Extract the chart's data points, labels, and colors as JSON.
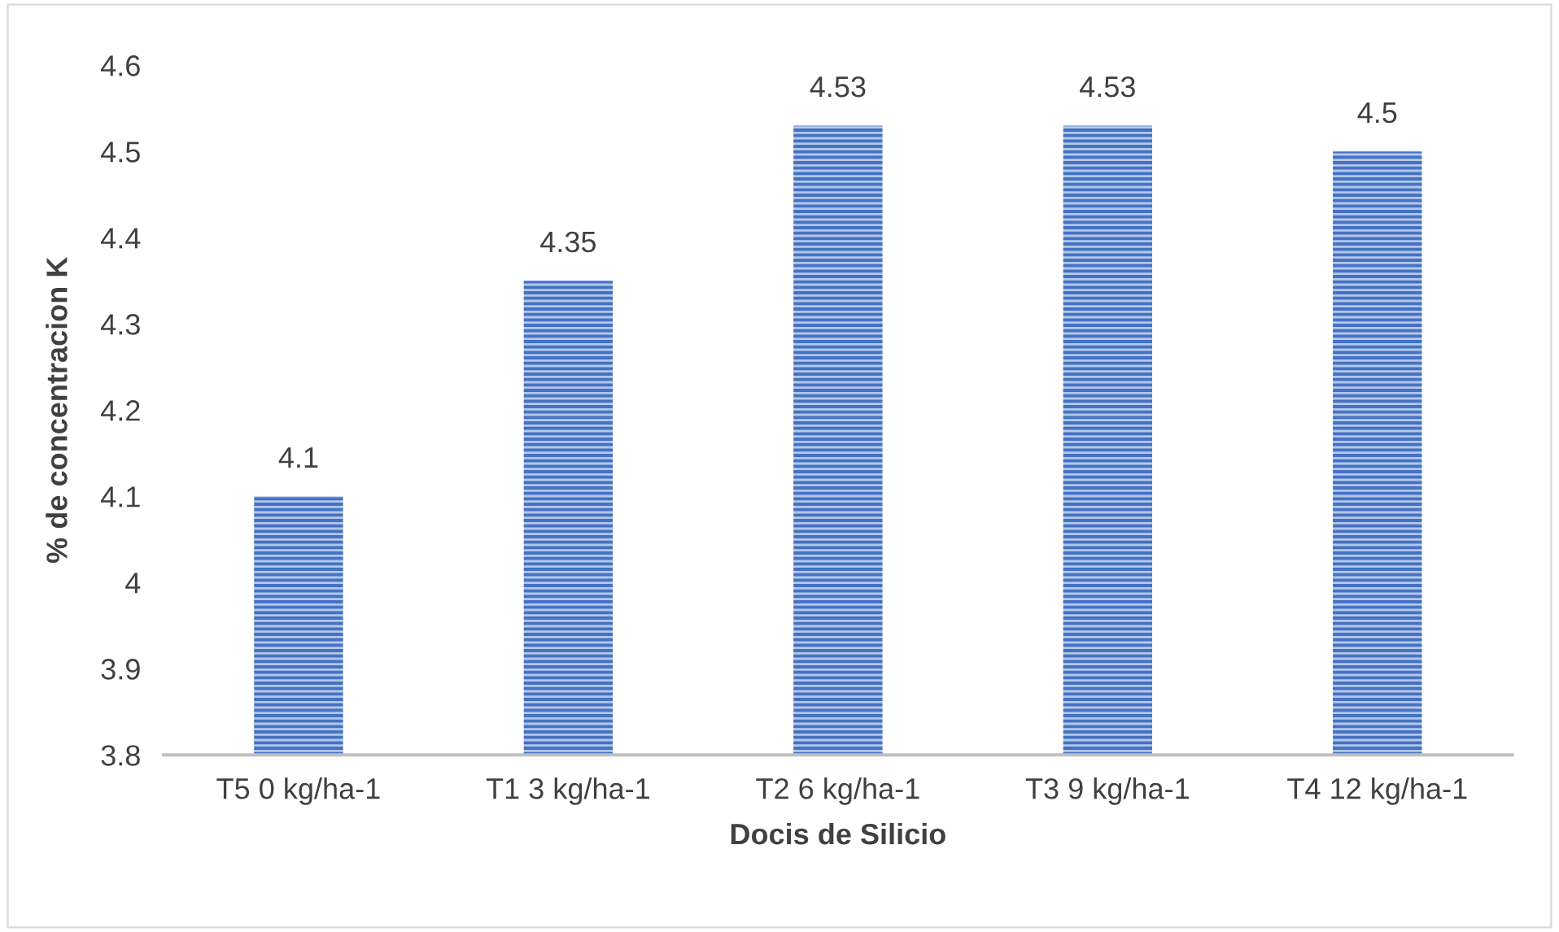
{
  "chart_data": {
    "type": "bar",
    "xlabel": "Docis de Silicio",
    "ylabel": "% de concentracion K",
    "categories": [
      "T5 0 kg/ha-1",
      "T1 3 kg/ha-1",
      "T2 6 kg/ha-1",
      "T3 9 kg/ha-1",
      "T4 12 kg/ha-1"
    ],
    "values": [
      4.1,
      4.35,
      4.53,
      4.53,
      4.5
    ],
    "color": "#4472c4",
    "ylim": [
      3.8,
      4.6
    ],
    "yticks": [
      {
        "value": 3.8,
        "label": "3.8"
      },
      {
        "value": 3.9,
        "label": "3.9"
      },
      {
        "value": 4.0,
        "label": "4"
      },
      {
        "value": 4.1,
        "label": "4.1"
      },
      {
        "value": 4.2,
        "label": "4.2"
      },
      {
        "value": 4.3,
        "label": "4.3"
      },
      {
        "value": 4.4,
        "label": "4.4"
      },
      {
        "value": 4.5,
        "label": "4.5"
      },
      {
        "value": 4.6,
        "label": "4.6"
      }
    ],
    "grid": false,
    "data_labels": true
  }
}
